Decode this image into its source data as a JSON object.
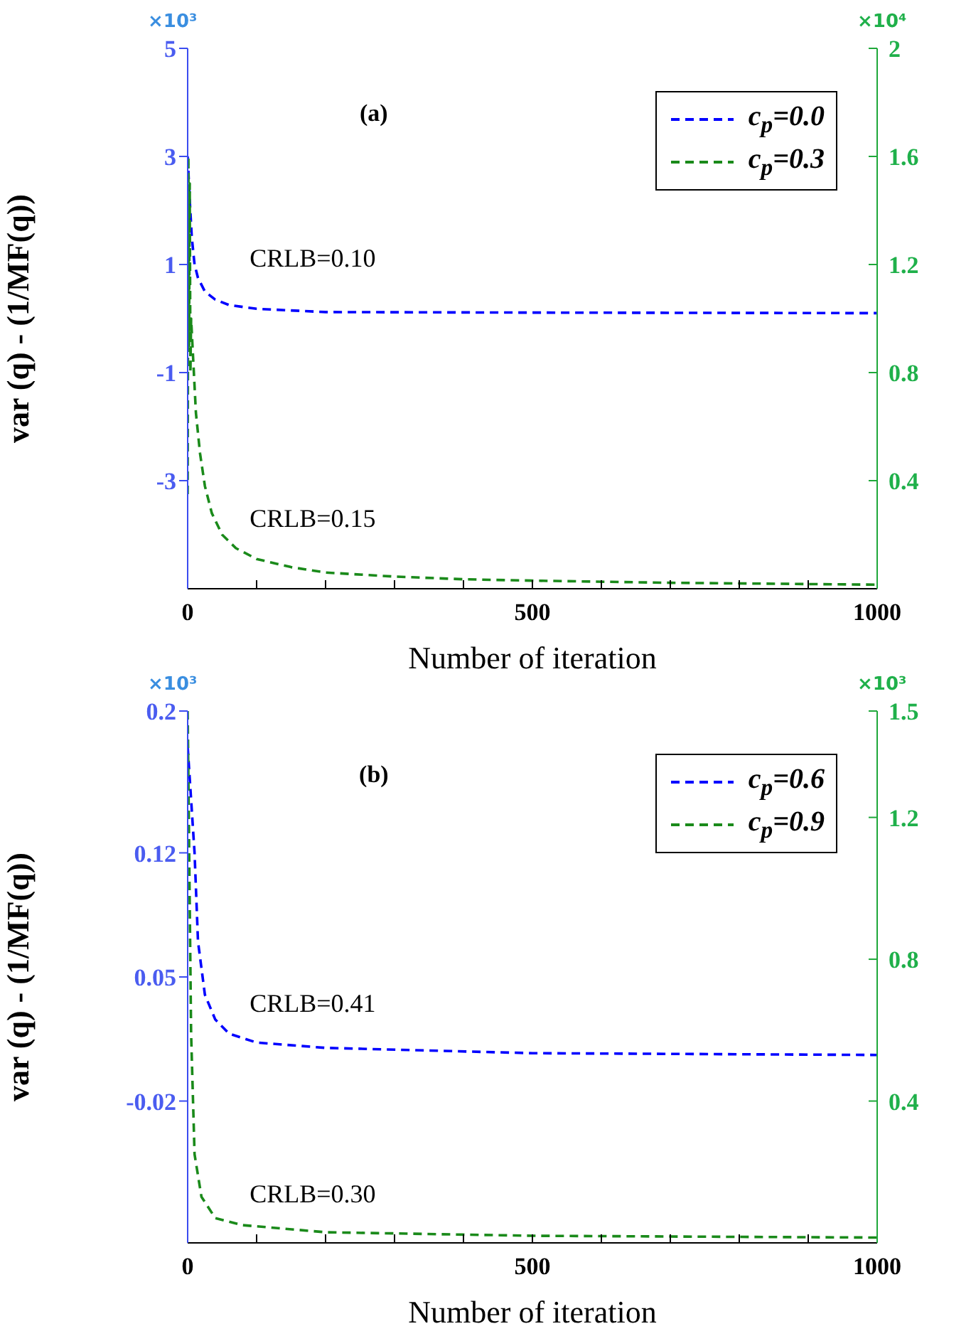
{
  "chart_data": [
    {
      "type": "line",
      "xlabel": "Number of iteration",
      "ylabel": "var (q) - (1/MF(q))",
      "xlim": [
        0,
        1000
      ],
      "xticks": [
        0,
        {
          "value": 100,
          "label": null
        },
        {
          "value": 200,
          "label": null
        },
        {
          "value": 300,
          "label": null
        },
        {
          "value": 400,
          "label": null
        },
        500,
        {
          "value": 600,
          "label": null
        },
        {
          "value": 700,
          "label": null
        },
        {
          "value": 800,
          "label": null
        },
        {
          "value": 900,
          "label": null
        },
        1000
      ],
      "ylim": [
        -5,
        5
      ],
      "yticks": [
        5,
        3,
        1,
        -1,
        -3
      ],
      "y2lim": [
        0,
        2
      ],
      "y2ticks": [
        2,
        1.6,
        1.2,
        0.8,
        0.4
      ],
      "legend": "top right",
      "line_style": "dashed",
      "marker": "none",
      "grid": false,
      "annotations": [
        "(a)",
        "×10³",
        "×10⁴",
        "CRLB=0.10",
        "CRLB=0.15"
      ],
      "series": [
        {
          "name": "c$_{p}$=0.0",
          "color": "#0000ff",
          "x": [
            0,
            3,
            6,
            10,
            15,
            25,
            40,
            60,
            100,
            200,
            500,
            1000
          ],
          "values": [
            3,
            2.2,
            1.5,
            1,
            0.75,
            0.5,
            0.35,
            0.25,
            0.18,
            0.12,
            0.11,
            0.1
          ]
        },
        {
          "name": "c$_{p}$=0.3",
          "color": "#1a8a1a",
          "axis": "y2",
          "x": [
            0,
            1,
            2,
            3,
            4,
            5,
            8,
            12,
            18,
            25,
            35,
            50,
            70,
            100,
            150,
            200,
            300,
            400,
            500,
            700,
            1000
          ],
          "values": [
            0.35,
            1.6,
            0.9,
            1.5,
            0.8,
            1,
            0.85,
            0.65,
            0.5,
            0.38,
            0.28,
            0.2,
            0.15,
            0.11,
            0.08,
            0.06,
            0.045,
            0.035,
            0.03,
            0.022,
            0.015
          ]
        }
      ]
    },
    {
      "type": "line",
      "xlabel": "Number of iteration",
      "ylabel": "var (q) - (1/MF(q))",
      "xlim": [
        0,
        1000
      ],
      "xticks": [
        0,
        {
          "value": 100,
          "label": null
        },
        {
          "value": 200,
          "label": null
        },
        {
          "value": 300,
          "label": null
        },
        {
          "value": 400,
          "label": null
        },
        500,
        {
          "value": 600,
          "label": null
        },
        {
          "value": 700,
          "label": null
        },
        {
          "value": 800,
          "label": null
        },
        {
          "value": 900,
          "label": null
        },
        1000
      ],
      "ylim": [
        -0.1,
        0.2
      ],
      "yticks": [
        0.2,
        0.12,
        0.05,
        -0.02
      ],
      "y2lim": [
        0,
        1.5
      ],
      "y2ticks": [
        1.5,
        1.2,
        0.8,
        0.4
      ],
      "legend": "top right",
      "line_style": "dashed",
      "marker": "none",
      "grid": false,
      "annotations": [
        "(b)",
        "×10³",
        "×10³",
        "CRLB=0.41",
        "CRLB=0.30"
      ],
      "series": [
        {
          "name": "c$_{p}$=0.6",
          "color": "#0000ff",
          "x": [
            0,
            5,
            10,
            15,
            25,
            40,
            60,
            100,
            200,
            500,
            1000
          ],
          "values": [
            0.18,
            0.15,
            0.12,
            0.07,
            0.04,
            0.026,
            0.018,
            0.013,
            0.01,
            0.007,
            0.006
          ]
        },
        {
          "name": "c$_{p}$=0.9",
          "color": "#1a8a1a",
          "axis": "y2",
          "x": [
            0,
            5,
            10,
            20,
            40,
            80,
            200,
            500,
            1000
          ],
          "values": [
            1.5,
            0.59,
            0.25,
            0.13,
            0.07,
            0.05,
            0.03,
            0.02,
            0.015
          ]
        }
      ]
    }
  ]
}
